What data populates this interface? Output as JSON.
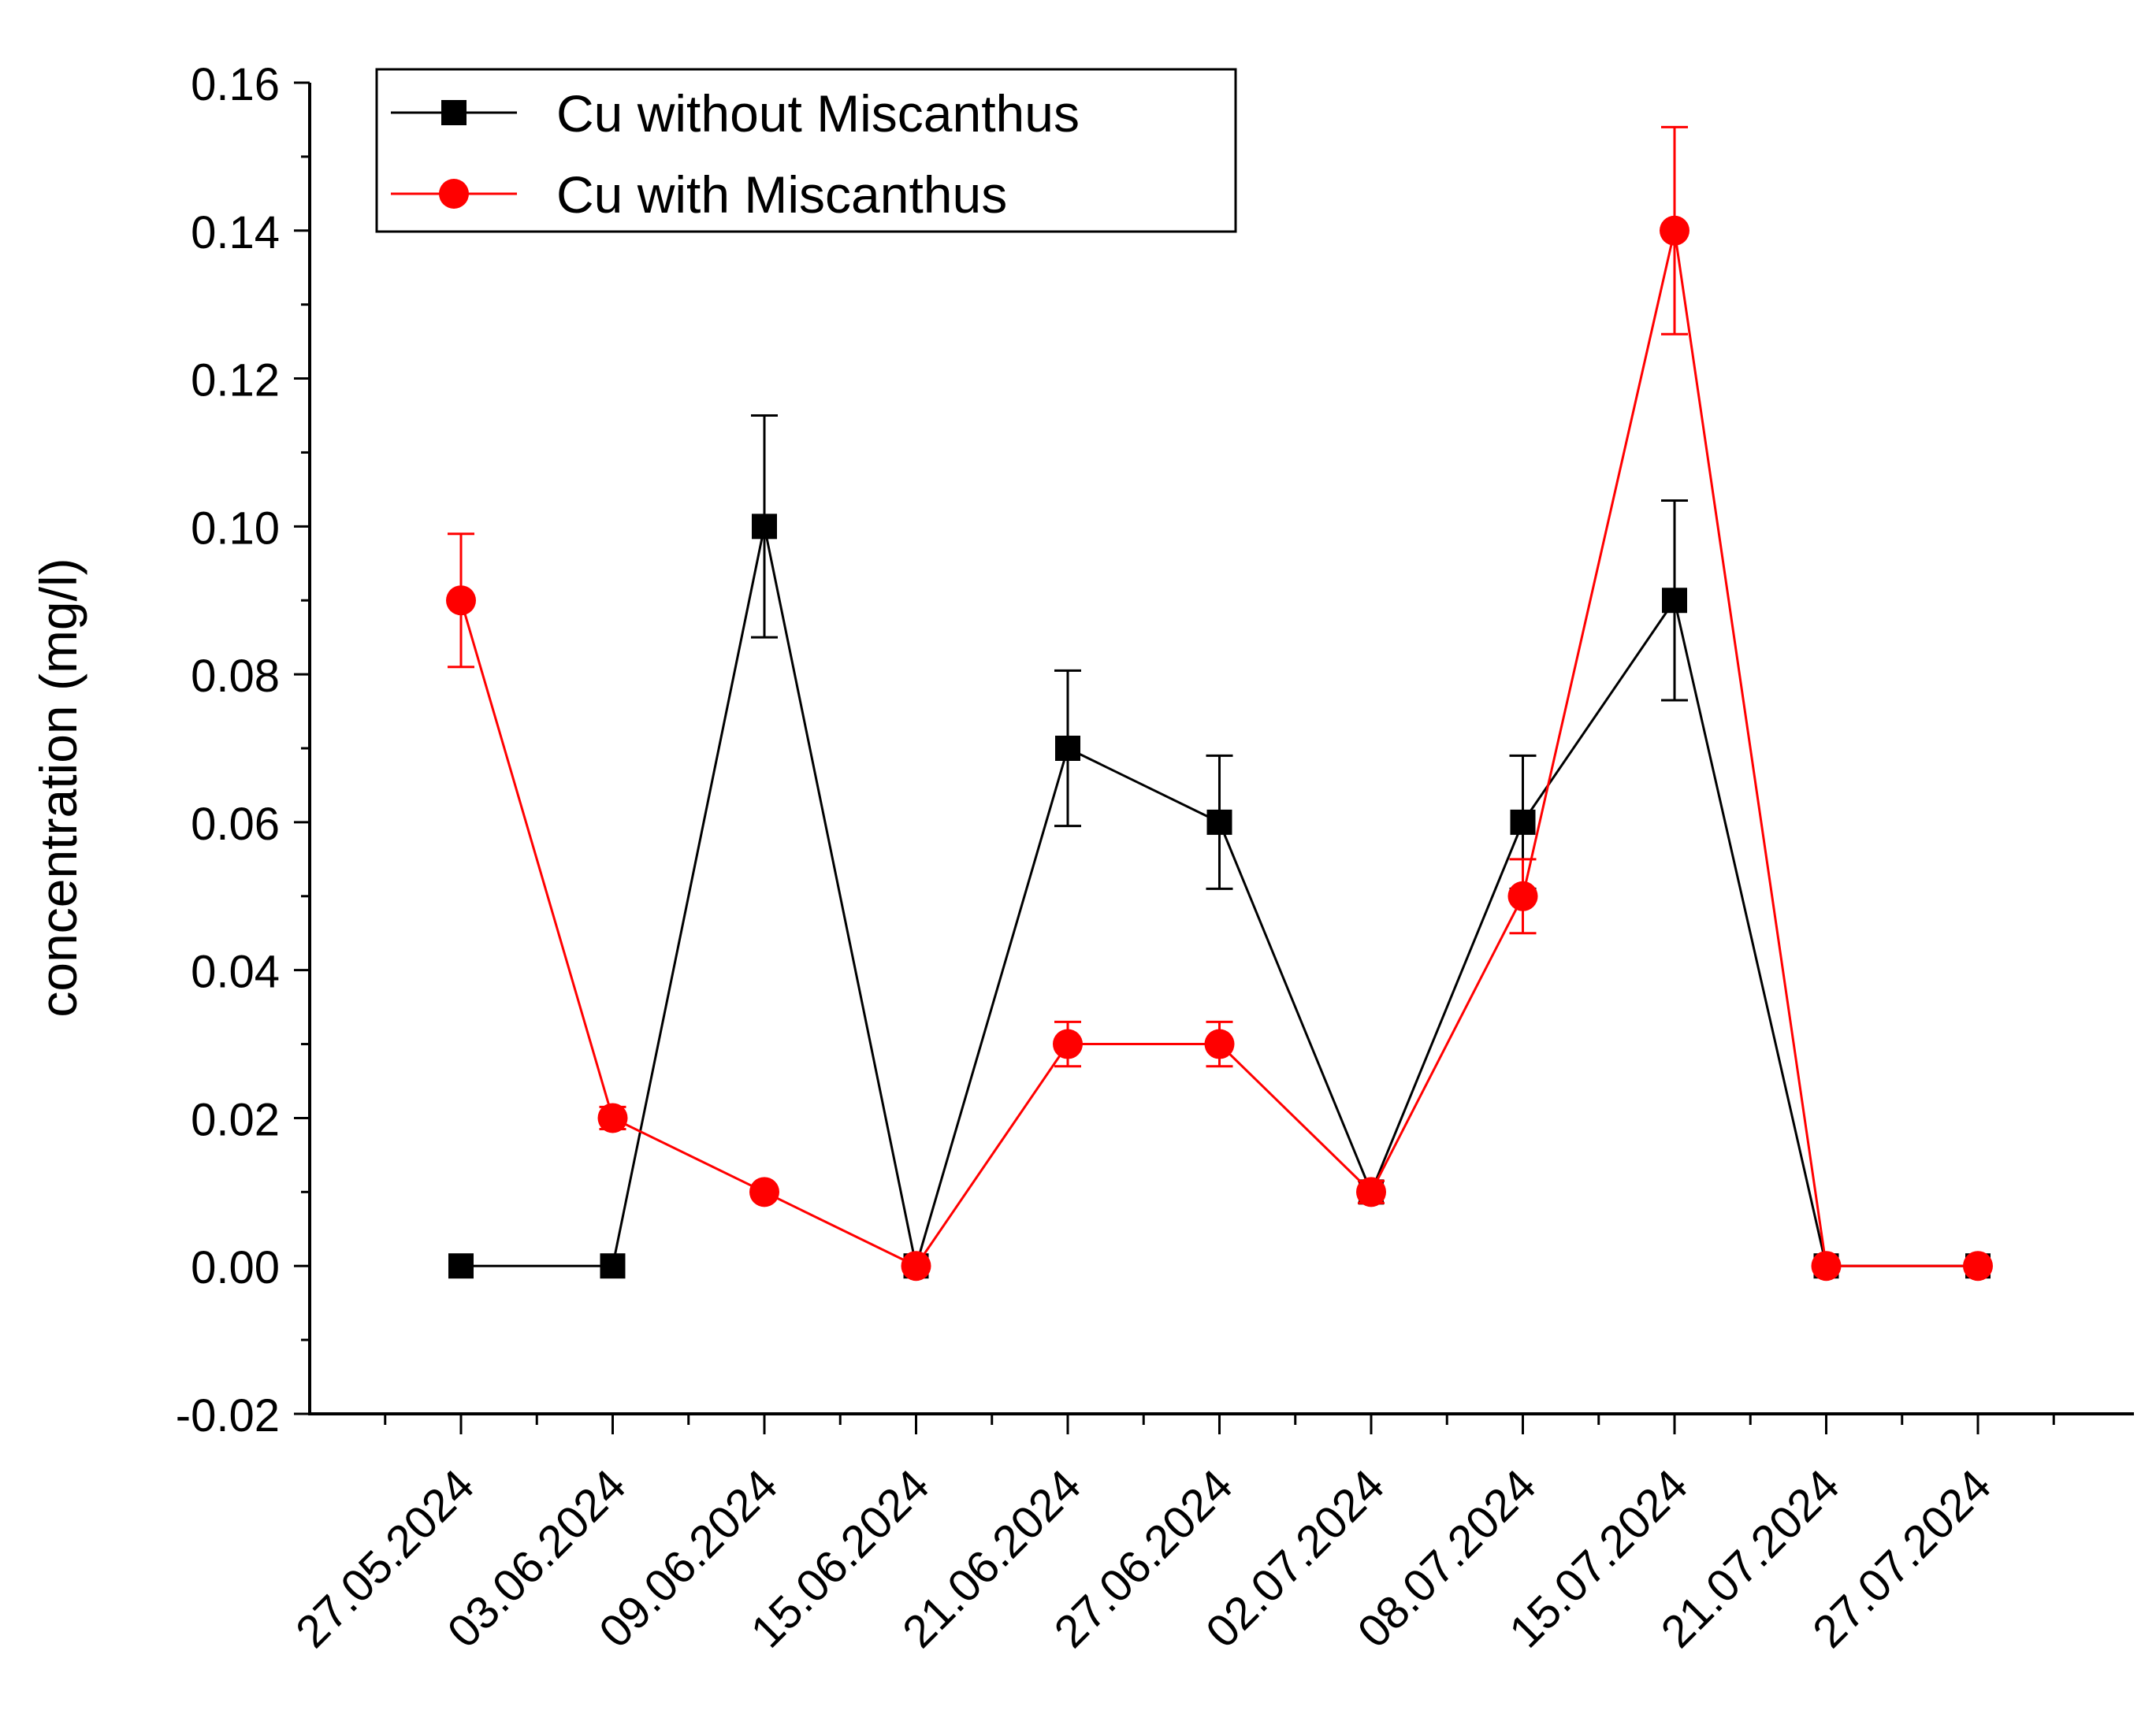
{
  "chart_data": {
    "type": "line",
    "title": "",
    "xlabel": "",
    "ylabel": "concentration (mg/l)",
    "ylim": [
      -0.02,
      0.16
    ],
    "yticks": [
      "-0.02",
      "0.00",
      "0.02",
      "0.04",
      "0.06",
      "0.08",
      "0.10",
      "0.12",
      "0.14",
      "0.16"
    ],
    "grid": false,
    "legend_position": "top-left",
    "categories": [
      "27.05.2024",
      "03.06.2024",
      "09.06.2024",
      "15.06.2024",
      "21.06.2024",
      "27.06.2024",
      "02.07.2024",
      "08.07.2024",
      "15.07.2024",
      "21.07.2024",
      "27.07.2024"
    ],
    "series": [
      {
        "name": "Cu without Miscanthus",
        "color": "#000000",
        "marker": "square",
        "values": [
          0.0,
          0.0,
          0.1,
          0.0,
          0.07,
          0.06,
          0.01,
          0.06,
          0.09,
          0.0,
          0.0
        ],
        "errors": [
          0,
          0,
          0.015,
          0,
          0.0105,
          0.009,
          0.0015,
          0.009,
          0.0135,
          0,
          0
        ]
      },
      {
        "name": "Cu with Miscanthus",
        "color": "#ff0000",
        "marker": "circle",
        "values": [
          0.09,
          0.02,
          0.01,
          0.0,
          0.03,
          0.03,
          0.01,
          0.05,
          0.14,
          0.0,
          0.0
        ],
        "errors": [
          0.009,
          0.0015,
          0,
          0,
          0.003,
          0.003,
          0.0015,
          0.005,
          0.014,
          0,
          0
        ]
      }
    ]
  }
}
